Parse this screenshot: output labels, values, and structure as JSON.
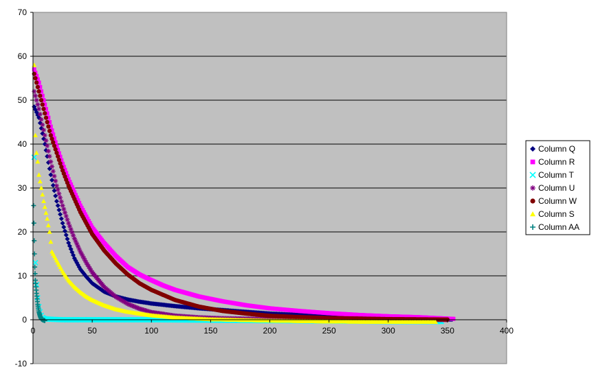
{
  "chart_data": {
    "type": "scatter",
    "title": "",
    "xlabel": "",
    "ylabel": "",
    "xlim": [
      0,
      400
    ],
    "ylim": [
      -10,
      70
    ],
    "x_ticks": [
      0,
      50,
      100,
      150,
      200,
      250,
      300,
      350,
      400
    ],
    "y_ticks": [
      -10,
      0,
      10,
      20,
      30,
      40,
      50,
      60,
      70
    ],
    "grid": "horizontal",
    "plot_background": "#c0c0c0",
    "legend_position": "right",
    "series": [
      {
        "name": "Column Q",
        "color": "#000080",
        "marker": "diamond",
        "points": [
          [
            1,
            48.5
          ],
          [
            5,
            46
          ],
          [
            10,
            40
          ],
          [
            15,
            33
          ],
          [
            20,
            27
          ],
          [
            25,
            22
          ],
          [
            30,
            17.5
          ],
          [
            35,
            14
          ],
          [
            40,
            11.5
          ],
          [
            45,
            9.8
          ],
          [
            50,
            8.3
          ],
          [
            60,
            6.4
          ],
          [
            70,
            5.3
          ],
          [
            80,
            4.6
          ],
          [
            90,
            4.1
          ],
          [
            100,
            3.7
          ],
          [
            120,
            3.1
          ],
          [
            140,
            2.6
          ],
          [
            160,
            2.2
          ],
          [
            180,
            1.8
          ],
          [
            200,
            1.4
          ],
          [
            225,
            1.1
          ],
          [
            250,
            0.8
          ],
          [
            275,
            0.5
          ],
          [
            300,
            0.3
          ],
          [
            325,
            0.15
          ],
          [
            354,
            0.05
          ]
        ]
      },
      {
        "name": "Column R",
        "color": "#ff00ff",
        "marker": "square",
        "points": [
          [
            1,
            57
          ],
          [
            5,
            54
          ],
          [
            10,
            49
          ],
          [
            15,
            44
          ],
          [
            20,
            39.5
          ],
          [
            25,
            35.5
          ],
          [
            30,
            32
          ],
          [
            35,
            29
          ],
          [
            40,
            26
          ],
          [
            50,
            21
          ],
          [
            60,
            17.5
          ],
          [
            70,
            14.5
          ],
          [
            80,
            12
          ],
          [
            90,
            10.3
          ],
          [
            100,
            9
          ],
          [
            110,
            7.8
          ],
          [
            120,
            6.8
          ],
          [
            140,
            5.3
          ],
          [
            160,
            4.2
          ],
          [
            180,
            3.3
          ],
          [
            200,
            2.6
          ],
          [
            225,
            2
          ],
          [
            250,
            1.5
          ],
          [
            275,
            1.1
          ],
          [
            300,
            0.8
          ],
          [
            325,
            0.6
          ],
          [
            355,
            0.2
          ]
        ]
      },
      {
        "name": "Column T",
        "color": "#00ffff",
        "marker": "x",
        "points": [
          [
            1,
            37
          ],
          [
            1.5,
            23
          ],
          [
            2,
            13
          ],
          [
            3,
            8
          ],
          [
            4,
            5
          ],
          [
            5,
            3
          ],
          [
            6,
            1.8
          ],
          [
            7,
            1
          ],
          [
            8,
            0.5
          ],
          [
            10,
            0.2
          ],
          [
            15,
            0.1
          ],
          [
            25,
            0
          ],
          [
            50,
            0
          ],
          [
            100,
            0
          ],
          [
            150,
            -0.1
          ],
          [
            200,
            -0.2
          ],
          [
            250,
            -0.3
          ],
          [
            300,
            -0.4
          ],
          [
            345,
            -0.4
          ]
        ]
      },
      {
        "name": "Column U",
        "color": "#800080",
        "marker": "star",
        "points": [
          [
            1,
            52
          ],
          [
            5,
            48
          ],
          [
            10,
            42
          ],
          [
            15,
            36
          ],
          [
            20,
            30.5
          ],
          [
            25,
            26
          ],
          [
            30,
            22
          ],
          [
            35,
            18.5
          ],
          [
            40,
            15.5
          ],
          [
            45,
            13
          ],
          [
            50,
            10.8
          ],
          [
            60,
            7.5
          ],
          [
            70,
            5.2
          ],
          [
            80,
            3.6
          ],
          [
            90,
            2.5
          ],
          [
            100,
            1.7
          ],
          [
            120,
            0.9
          ],
          [
            140,
            0.5
          ],
          [
            160,
            0.3
          ],
          [
            200,
            0.1
          ],
          [
            250,
            0
          ],
          [
            300,
            0
          ],
          [
            350,
            0
          ]
        ]
      },
      {
        "name": "Column W",
        "color": "#800000",
        "marker": "circle",
        "points": [
          [
            1,
            56
          ],
          [
            5,
            52
          ],
          [
            10,
            47
          ],
          [
            15,
            42
          ],
          [
            20,
            38
          ],
          [
            25,
            34
          ],
          [
            30,
            30.5
          ],
          [
            35,
            27.5
          ],
          [
            40,
            24.5
          ],
          [
            50,
            19.5
          ],
          [
            60,
            15.8
          ],
          [
            70,
            12.8
          ],
          [
            80,
            10.3
          ],
          [
            90,
            8.3
          ],
          [
            100,
            6.8
          ],
          [
            120,
            4.5
          ],
          [
            140,
            3
          ],
          [
            160,
            2
          ],
          [
            180,
            1.4
          ],
          [
            200,
            0.9
          ],
          [
            225,
            0.6
          ],
          [
            250,
            0.4
          ],
          [
            300,
            0.15
          ],
          [
            350,
            0.05
          ]
        ]
      },
      {
        "name": "Column S",
        "color": "#ffff00",
        "marker": "triangle",
        "points": [
          [
            1,
            58
          ],
          [
            2,
            42
          ],
          [
            3,
            38
          ],
          [
            4,
            36
          ],
          [
            5,
            33
          ],
          [
            7,
            30
          ],
          [
            9,
            27
          ],
          [
            12,
            23
          ],
          [
            14,
            20
          ],
          [
            16,
            15.5
          ],
          [
            20,
            13.5
          ],
          [
            25,
            11
          ],
          [
            30,
            9
          ],
          [
            35,
            7.5
          ],
          [
            40,
            6.3
          ],
          [
            45,
            5.3
          ],
          [
            50,
            4.5
          ],
          [
            60,
            3.3
          ],
          [
            70,
            2.4
          ],
          [
            80,
            1.8
          ],
          [
            100,
            1
          ],
          [
            120,
            0.5
          ],
          [
            150,
            0.1
          ],
          [
            200,
            -0.2
          ],
          [
            250,
            -0.4
          ],
          [
            300,
            -0.5
          ],
          [
            340,
            -0.5
          ]
        ]
      },
      {
        "name": "Column AA",
        "color": "#008080",
        "marker": "plus",
        "points": [
          [
            0.5,
            26
          ],
          [
            1,
            18
          ],
          [
            1.5,
            12
          ],
          [
            2,
            9
          ],
          [
            3,
            6
          ],
          [
            4,
            3.5
          ],
          [
            5,
            1.8
          ],
          [
            6,
            0.8
          ],
          [
            7,
            0.2
          ],
          [
            8,
            0
          ],
          [
            9,
            -0.1
          ],
          [
            10,
            -0.2
          ]
        ]
      }
    ]
  }
}
